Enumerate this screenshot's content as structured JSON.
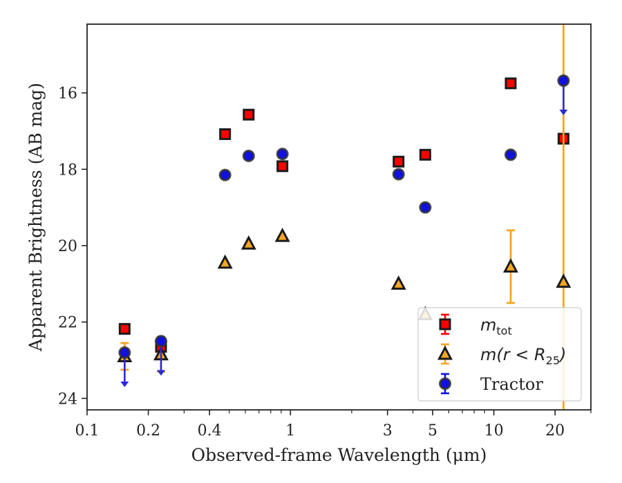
{
  "chart_data": {
    "type": "scatter",
    "title": "",
    "xlabel": "Observed-frame Wavelength (μm)",
    "ylabel": "Apparent Brightness (AB mag)",
    "xscale": "log",
    "xlim": [
      0.1,
      30
    ],
    "ylim": [
      24.3,
      14.2
    ],
    "y_inverted": true,
    "x_ticks": [
      {
        "value": 0.1,
        "label": "0.1"
      },
      {
        "value": 0.2,
        "label": "0.2"
      },
      {
        "value": 0.4,
        "label": "0.4"
      },
      {
        "value": 1,
        "label": "1"
      },
      {
        "value": 3,
        "label": "3"
      },
      {
        "value": 5,
        "label": "5"
      },
      {
        "value": 10,
        "label": "10"
      },
      {
        "value": 20,
        "label": "20"
      }
    ],
    "x_minor_ticks": [
      0.3,
      0.5,
      0.6,
      0.7,
      0.8,
      0.9,
      2,
      4,
      6,
      7,
      8,
      9,
      30
    ],
    "y_ticks": [
      {
        "value": 16,
        "label": "16"
      },
      {
        "value": 18,
        "label": "18"
      },
      {
        "value": 20,
        "label": "20"
      },
      {
        "value": 22,
        "label": "22"
      },
      {
        "value": 24,
        "label": "24"
      }
    ],
    "legend_position": "lower-right",
    "grid": false,
    "series": [
      {
        "key": "mtot",
        "label_main": "m",
        "label_sub": "tot",
        "marker": "square",
        "color": "#ff0000",
        "edge_color": "#1a1a1a",
        "points": [
          {
            "x": 0.153,
            "y": 22.18
          },
          {
            "x": 0.231,
            "y": 22.65
          },
          {
            "x": 0.477,
            "y": 17.08
          },
          {
            "x": 0.623,
            "y": 16.57
          },
          {
            "x": 0.913,
            "y": 17.92
          },
          {
            "x": 3.4,
            "y": 17.8
          },
          {
            "x": 4.6,
            "y": 17.62
          },
          {
            "x": 12.1,
            "y": 15.75
          },
          {
            "x": 22.0,
            "y": 17.2
          }
        ]
      },
      {
        "key": "mr25",
        "label_main": "m(r < R",
        "label_sub": "25",
        "label_end": ")",
        "marker": "triangle",
        "color": "#f5a623",
        "edge_color": "#1a1a1a",
        "points": [
          {
            "x": 0.153,
            "y": 22.9,
            "err": 0.35
          },
          {
            "x": 0.231,
            "y": 22.85,
            "err": 0.45
          },
          {
            "x": 0.477,
            "y": 20.45
          },
          {
            "x": 0.623,
            "y": 19.95
          },
          {
            "x": 0.913,
            "y": 19.75
          },
          {
            "x": 3.4,
            "y": 21.0
          },
          {
            "x": 4.6,
            "y": 21.8
          },
          {
            "x": 12.1,
            "y": 20.55,
            "err": 0.95
          },
          {
            "x": 22.0,
            "y": 20.95,
            "err": 20
          }
        ]
      },
      {
        "key": "tractor",
        "label_main": "Tractor",
        "marker": "circle",
        "color": "#1010e0",
        "edge_color": "#333333",
        "points": [
          {
            "x": 0.153,
            "y": 22.8,
            "upper_limit": true
          },
          {
            "x": 0.231,
            "y": 22.5,
            "upper_limit": true
          },
          {
            "x": 0.477,
            "y": 18.15
          },
          {
            "x": 0.623,
            "y": 17.65
          },
          {
            "x": 0.913,
            "y": 17.6
          },
          {
            "x": 3.4,
            "y": 18.13
          },
          {
            "x": 4.6,
            "y": 19.0
          },
          {
            "x": 12.1,
            "y": 17.62
          },
          {
            "x": 22.0,
            "y": 15.68,
            "upper_limit": true
          }
        ]
      }
    ]
  }
}
